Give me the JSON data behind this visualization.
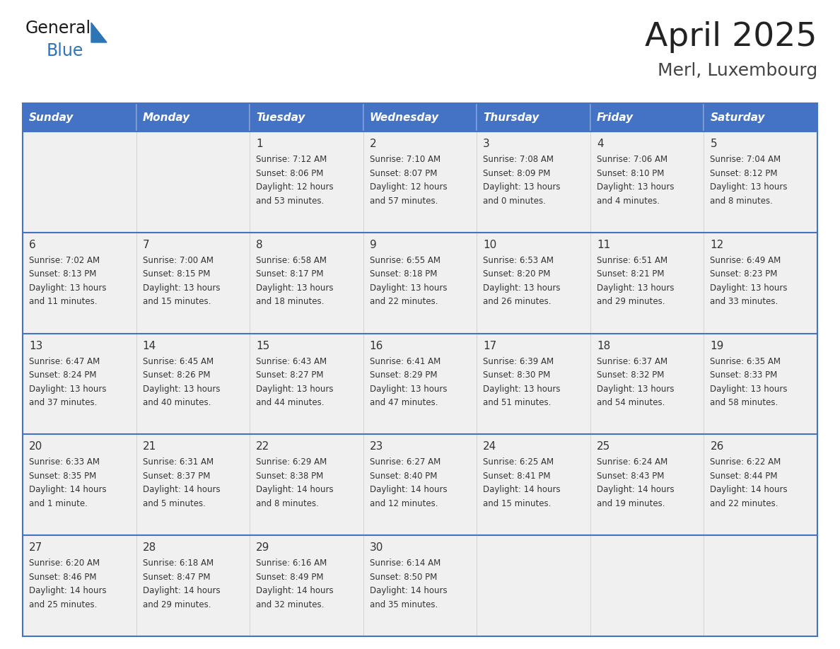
{
  "title": "April 2025",
  "subtitle": "Merl, Luxembourg",
  "days_of_week": [
    "Sunday",
    "Monday",
    "Tuesday",
    "Wednesday",
    "Thursday",
    "Friday",
    "Saturday"
  ],
  "header_bg": "#4472C4",
  "header_text_color": "#FFFFFF",
  "cell_bg": "#F0F0F0",
  "cell_text_color": "#333333",
  "border_color": "#4472C4",
  "row_sep_color": "#4472C4",
  "title_color": "#222222",
  "subtitle_color": "#444444",
  "logo_general_color": "#1a1a1a",
  "logo_blue_color": "#2E75B6",
  "weeks": [
    {
      "days": [
        {
          "date": "",
          "sunrise": "",
          "sunset": "",
          "daylight": ""
        },
        {
          "date": "",
          "sunrise": "",
          "sunset": "",
          "daylight": ""
        },
        {
          "date": "1",
          "sunrise": "7:12 AM",
          "sunset": "8:06 PM",
          "daylight": "12 hours and 53 minutes."
        },
        {
          "date": "2",
          "sunrise": "7:10 AM",
          "sunset": "8:07 PM",
          "daylight": "12 hours and 57 minutes."
        },
        {
          "date": "3",
          "sunrise": "7:08 AM",
          "sunset": "8:09 PM",
          "daylight": "13 hours and 0 minutes."
        },
        {
          "date": "4",
          "sunrise": "7:06 AM",
          "sunset": "8:10 PM",
          "daylight": "13 hours and 4 minutes."
        },
        {
          "date": "5",
          "sunrise": "7:04 AM",
          "sunset": "8:12 PM",
          "daylight": "13 hours and 8 minutes."
        }
      ]
    },
    {
      "days": [
        {
          "date": "6",
          "sunrise": "7:02 AM",
          "sunset": "8:13 PM",
          "daylight": "13 hours and 11 minutes."
        },
        {
          "date": "7",
          "sunrise": "7:00 AM",
          "sunset": "8:15 PM",
          "daylight": "13 hours and 15 minutes."
        },
        {
          "date": "8",
          "sunrise": "6:58 AM",
          "sunset": "8:17 PM",
          "daylight": "13 hours and 18 minutes."
        },
        {
          "date": "9",
          "sunrise": "6:55 AM",
          "sunset": "8:18 PM",
          "daylight": "13 hours and 22 minutes."
        },
        {
          "date": "10",
          "sunrise": "6:53 AM",
          "sunset": "8:20 PM",
          "daylight": "13 hours and 26 minutes."
        },
        {
          "date": "11",
          "sunrise": "6:51 AM",
          "sunset": "8:21 PM",
          "daylight": "13 hours and 29 minutes."
        },
        {
          "date": "12",
          "sunrise": "6:49 AM",
          "sunset": "8:23 PM",
          "daylight": "13 hours and 33 minutes."
        }
      ]
    },
    {
      "days": [
        {
          "date": "13",
          "sunrise": "6:47 AM",
          "sunset": "8:24 PM",
          "daylight": "13 hours and 37 minutes."
        },
        {
          "date": "14",
          "sunrise": "6:45 AM",
          "sunset": "8:26 PM",
          "daylight": "13 hours and 40 minutes."
        },
        {
          "date": "15",
          "sunrise": "6:43 AM",
          "sunset": "8:27 PM",
          "daylight": "13 hours and 44 minutes."
        },
        {
          "date": "16",
          "sunrise": "6:41 AM",
          "sunset": "8:29 PM",
          "daylight": "13 hours and 47 minutes."
        },
        {
          "date": "17",
          "sunrise": "6:39 AM",
          "sunset": "8:30 PM",
          "daylight": "13 hours and 51 minutes."
        },
        {
          "date": "18",
          "sunrise": "6:37 AM",
          "sunset": "8:32 PM",
          "daylight": "13 hours and 54 minutes."
        },
        {
          "date": "19",
          "sunrise": "6:35 AM",
          "sunset": "8:33 PM",
          "daylight": "13 hours and 58 minutes."
        }
      ]
    },
    {
      "days": [
        {
          "date": "20",
          "sunrise": "6:33 AM",
          "sunset": "8:35 PM",
          "daylight": "14 hours and 1 minute."
        },
        {
          "date": "21",
          "sunrise": "6:31 AM",
          "sunset": "8:37 PM",
          "daylight": "14 hours and 5 minutes."
        },
        {
          "date": "22",
          "sunrise": "6:29 AM",
          "sunset": "8:38 PM",
          "daylight": "14 hours and 8 minutes."
        },
        {
          "date": "23",
          "sunrise": "6:27 AM",
          "sunset": "8:40 PM",
          "daylight": "14 hours and 12 minutes."
        },
        {
          "date": "24",
          "sunrise": "6:25 AM",
          "sunset": "8:41 PM",
          "daylight": "14 hours and 15 minutes."
        },
        {
          "date": "25",
          "sunrise": "6:24 AM",
          "sunset": "8:43 PM",
          "daylight": "14 hours and 19 minutes."
        },
        {
          "date": "26",
          "sunrise": "6:22 AM",
          "sunset": "8:44 PM",
          "daylight": "14 hours and 22 minutes."
        }
      ]
    },
    {
      "days": [
        {
          "date": "27",
          "sunrise": "6:20 AM",
          "sunset": "8:46 PM",
          "daylight": "14 hours and 25 minutes."
        },
        {
          "date": "28",
          "sunrise": "6:18 AM",
          "sunset": "8:47 PM",
          "daylight": "14 hours and 29 minutes."
        },
        {
          "date": "29",
          "sunrise": "6:16 AM",
          "sunset": "8:49 PM",
          "daylight": "14 hours and 32 minutes."
        },
        {
          "date": "30",
          "sunrise": "6:14 AM",
          "sunset": "8:50 PM",
          "daylight": "14 hours and 35 minutes."
        },
        {
          "date": "",
          "sunrise": "",
          "sunset": "",
          "daylight": ""
        },
        {
          "date": "",
          "sunrise": "",
          "sunset": "",
          "daylight": ""
        },
        {
          "date": "",
          "sunrise": "",
          "sunset": "",
          "daylight": ""
        }
      ]
    }
  ]
}
